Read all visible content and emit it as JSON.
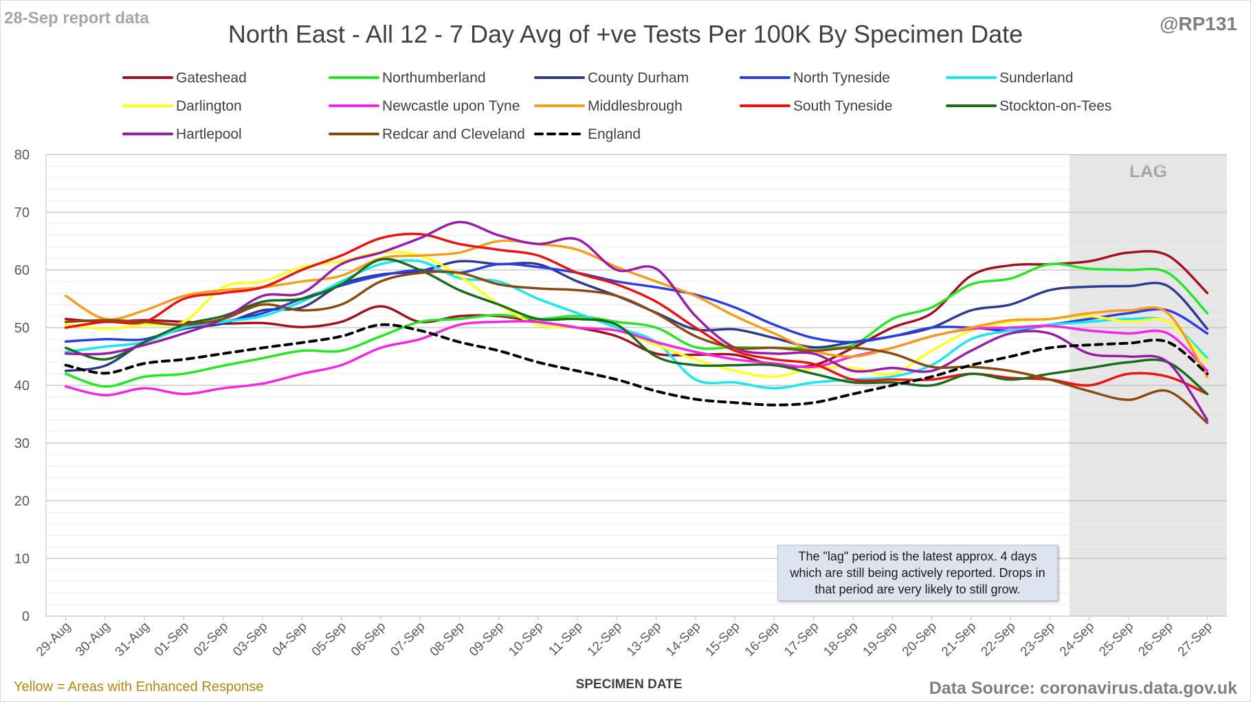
{
  "header": {
    "report_label": "28-Sep report data",
    "handle": "@RP131"
  },
  "footer": {
    "yellow_note": "Yellow = Areas with Enhanced Response",
    "source": "Data Source: coronavirus.data.gov.uk"
  },
  "note": "The \"lag\" period is the latest approx. 4 days which are still being actively reported.  Drops in that period are very likely to still grow.",
  "chart_data": {
    "type": "line",
    "title": "North East - All 12 - 7 Day Avg of +ve Tests Per 100K By Specimen Date",
    "xlabel": "SPECIMEN DATE",
    "ylabel": "",
    "ylim": [
      0,
      80
    ],
    "yticks": [
      0,
      10,
      20,
      30,
      40,
      50,
      60,
      70,
      80
    ],
    "grid": true,
    "legend_position": "top",
    "lag_label": "LAG",
    "lag_range": [
      "24-Sep",
      "27-Sep"
    ],
    "categories": [
      "29-Aug",
      "30-Aug",
      "31-Aug",
      "01-Sep",
      "02-Sep",
      "03-Sep",
      "04-Sep",
      "05-Sep",
      "06-Sep",
      "07-Sep",
      "08-Sep",
      "09-Sep",
      "10-Sep",
      "11-Sep",
      "12-Sep",
      "13-Sep",
      "14-Sep",
      "15-Sep",
      "16-Sep",
      "17-Sep",
      "18-Sep",
      "19-Sep",
      "20-Sep",
      "21-Sep",
      "22-Sep",
      "23-Sep",
      "24-Sep",
      "25-Sep",
      "26-Sep",
      "27-Sep"
    ],
    "series": [
      {
        "name": "Gateshead",
        "color": "#a50f21",
        "dash": false,
        "values": [
          51.5,
          51,
          51.3,
          51,
          50.7,
          50.8,
          50.1,
          51,
          53.7,
          51,
          52,
          52,
          51,
          50,
          48.5,
          45.5,
          45.3,
          45.3,
          43.5,
          43.5,
          46.5,
          50,
          52.5,
          59,
          60.8,
          61,
          61.5,
          63,
          62.5,
          56
        ]
      },
      {
        "name": "Northumberland",
        "color": "#22e822",
        "dash": false,
        "values": [
          42,
          39.8,
          41.5,
          42,
          43.4,
          44.7,
          46,
          46,
          48.5,
          51,
          51.5,
          52.2,
          51.5,
          52,
          51,
          50,
          46.6,
          46.6,
          46.5,
          46.5,
          47,
          51.5,
          53.5,
          57.5,
          58.5,
          61,
          60.2,
          60,
          59.5,
          52.5
        ]
      },
      {
        "name": "County Durham",
        "color": "#2e3a8c",
        "dash": false,
        "values": [
          42.5,
          43.4,
          47.5,
          49.8,
          50.7,
          53,
          53.5,
          57.5,
          59.2,
          59.8,
          61.5,
          61,
          61,
          58,
          55.5,
          52.6,
          49.7,
          49.7,
          48.2,
          46.6,
          47.5,
          48.5,
          50,
          53,
          54,
          56.5,
          57.1,
          57.2,
          57.2,
          49.8
        ]
      },
      {
        "name": "North Tyneside",
        "color": "#2b3ee6",
        "dash": false,
        "values": [
          47.6,
          48,
          48,
          50,
          51,
          52.5,
          55,
          57.3,
          59,
          60,
          59.5,
          61,
          60.5,
          59.5,
          58,
          57,
          55.7,
          53.5,
          50.5,
          48.2,
          47.5,
          48.5,
          50,
          50,
          49.5,
          50.5,
          51.5,
          52.5,
          53,
          49
        ]
      },
      {
        "name": "Sunderland",
        "color": "#16e8ef",
        "dash": false,
        "values": [
          45.8,
          46.7,
          47.5,
          50,
          51,
          52,
          54.5,
          58,
          61,
          61.5,
          58.6,
          58,
          55,
          52.5,
          50,
          47.5,
          41,
          40.5,
          39.5,
          40.5,
          41,
          41.5,
          43.5,
          48,
          49.5,
          50.5,
          51,
          51.5,
          51,
          44.8
        ]
      },
      {
        "name": "Darlington",
        "color": "#ffff1a",
        "dash": false,
        "values": [
          50.6,
          49.8,
          50.5,
          51,
          57,
          58,
          60.5,
          61.5,
          63,
          62.5,
          59,
          54,
          50.5,
          50,
          49.5,
          47,
          44.5,
          42.5,
          41.5,
          43,
          43,
          42,
          46,
          49.5,
          51,
          51.5,
          52,
          51,
          51,
          44
        ]
      },
      {
        "name": "Newcastle upon Tyne",
        "color": "#f524e6",
        "dash": false,
        "values": [
          39.8,
          38.3,
          39.5,
          38.5,
          39.5,
          40.3,
          42,
          43.5,
          46.5,
          48,
          50.5,
          51,
          51,
          50,
          49.5,
          47.5,
          45.8,
          44.5,
          43.8,
          43.2,
          45,
          46.5,
          48.5,
          49.8,
          50,
          50.3,
          49.5,
          49,
          49,
          42.5
        ]
      },
      {
        "name": "Middlesbrough",
        "color": "#f99c1a",
        "dash": false,
        "values": [
          55.5,
          51.5,
          53,
          55.5,
          56.5,
          57,
          58,
          59,
          62,
          62.5,
          63,
          65,
          64.5,
          63.5,
          60.5,
          58,
          55.5,
          52,
          49,
          46,
          45,
          46.5,
          48.5,
          50,
          51.3,
          51.5,
          52.5,
          53,
          52.5,
          41.5
        ]
      },
      {
        "name": "South Tyneside",
        "color": "#f01010",
        "dash": false,
        "values": [
          50,
          51,
          51,
          55,
          56,
          57,
          60,
          62.5,
          65.5,
          66.2,
          64.5,
          63.5,
          62.5,
          59.5,
          57.5,
          54.5,
          50,
          46,
          44.5,
          43.7,
          41,
          41,
          41,
          42,
          41.3,
          41,
          40,
          42,
          41.5,
          38.5
        ]
      },
      {
        "name": "Stockton-on-Tees",
        "color": "#1a6b1a",
        "dash": false,
        "values": [
          46.5,
          44.5,
          47.5,
          50.5,
          52,
          54.5,
          55,
          57.5,
          61.8,
          60,
          56.5,
          54,
          51.5,
          51.5,
          50.5,
          45,
          43.5,
          43.5,
          43.5,
          42,
          40.5,
          40.5,
          40,
          42,
          41,
          42,
          43,
          44,
          44,
          38.5
        ]
      },
      {
        "name": "Hartlepool",
        "color": "#9b1aa8",
        "dash": false,
        "values": [
          45.5,
          45.5,
          47,
          49,
          51.5,
          55.5,
          56,
          61,
          63,
          65.5,
          68.3,
          66,
          64.5,
          65.3,
          60,
          60.2,
          52,
          46.5,
          45.5,
          45.5,
          42.5,
          43,
          42.5,
          46,
          49,
          49,
          45.5,
          45,
          44,
          34
        ]
      },
      {
        "name": "Redcar and Cleveland",
        "color": "#8a4a0f",
        "dash": false,
        "values": [
          51,
          51.3,
          51,
          50.5,
          51.5,
          54,
          53,
          54,
          58,
          59.5,
          59.5,
          57.5,
          56.8,
          56.5,
          55.5,
          52.5,
          48.5,
          46.5,
          46.5,
          46,
          46.5,
          45.5,
          43.2,
          43.2,
          42.5,
          41,
          39,
          37.5,
          39,
          33.5
        ]
      },
      {
        "name": "England",
        "color": "#000000",
        "dash": true,
        "values": [
          43.5,
          42.1,
          43.8,
          44.5,
          45.5,
          46.5,
          47.4,
          48.5,
          50.5,
          49.5,
          47.5,
          46,
          44,
          42.5,
          41,
          39,
          37.6,
          37,
          36.6,
          37,
          38.5,
          40,
          41.5,
          43.5,
          45,
          46.5,
          47,
          47.3,
          47.5,
          42
        ]
      }
    ]
  }
}
